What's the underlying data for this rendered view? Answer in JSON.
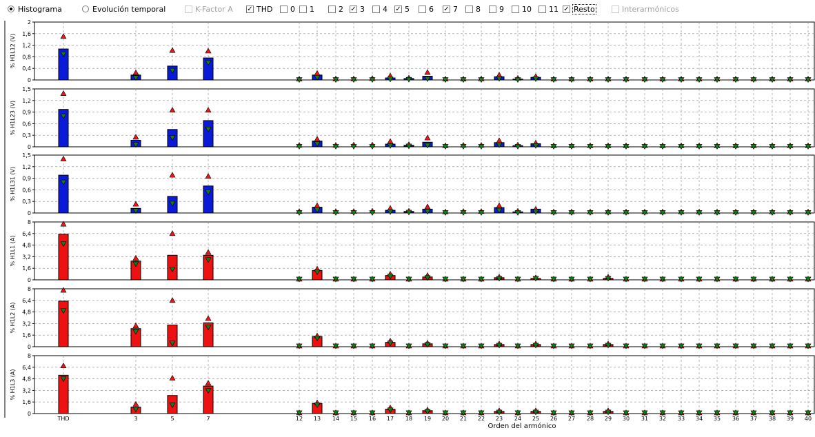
{
  "toolbar": {
    "histogram_label": "Histograma",
    "temporal_label": "Evolución temporal",
    "kfactor_label": "K-Factor A",
    "thd_label": "THD",
    "h0_label": "0",
    "h1_label": "1",
    "h2_label": "2",
    "h3_label": "3",
    "h4_label": "4",
    "h5_label": "5",
    "h6_label": "6",
    "h7_label": "7",
    "h8_label": "8",
    "h9_label": "9",
    "h10_label": "10",
    "h11_label": "11",
    "resto_label": "Resto",
    "inter_label": "Interarmónicos",
    "checked": {
      "thd": true,
      "h3": true,
      "h5": true,
      "h7": true,
      "resto": true
    },
    "selected_mode": "Histograma"
  },
  "colors": {
    "voltage_bar": "#0a1ad8",
    "current_bar": "#ee1111",
    "max_marker": "#e81818",
    "min_marker": "#167a16"
  },
  "chart_data": {
    "type": "bar",
    "categories": [
      "THD",
      "3",
      "5",
      "7",
      "12",
      "13",
      "14",
      "15",
      "16",
      "17",
      "18",
      "19",
      "20",
      "21",
      "22",
      "23",
      "24",
      "25",
      "26",
      "27",
      "28",
      "29",
      "30",
      "31",
      "32",
      "33",
      "34",
      "35",
      "36",
      "37",
      "38",
      "39",
      "40"
    ],
    "xlabel": "Orden del armónico",
    "legend": "none",
    "grid": true,
    "panels": [
      {
        "ylabel": "% H1L12 (V)",
        "ylim": [
          0,
          2
        ],
        "yticks": [
          "0",
          "0,4",
          "0,8",
          "1,2",
          "1,6",
          "2"
        ],
        "bar_color": "voltage",
        "values": [
          1.07,
          0.17,
          0.48,
          0.76,
          0,
          0.17,
          0,
          0,
          0,
          0.07,
          0.05,
          0.13,
          0,
          0,
          0,
          0.11,
          0.03,
          0.09,
          0,
          0,
          0,
          0,
          0,
          0,
          0,
          0,
          0,
          0,
          0,
          0,
          0,
          0,
          0
        ],
        "max": [
          1.5,
          0.25,
          1.02,
          1.0,
          0.03,
          0.23,
          0.04,
          0.04,
          0.05,
          0.14,
          0.07,
          0.26,
          0.03,
          0.03,
          0.04,
          0.17,
          0.06,
          0.12,
          0.03,
          0.03,
          0.03,
          0.03,
          0.03,
          0.03,
          0.03,
          0.03,
          0.03,
          0.03,
          0.03,
          0.03,
          0.03,
          0.03,
          0.03
        ],
        "min": [
          0.9,
          0.08,
          0.33,
          0.6,
          0.01,
          0.09,
          0.01,
          0.01,
          0.01,
          0.03,
          0.02,
          0.04,
          0.01,
          0.01,
          0.01,
          0.05,
          0.01,
          0.04,
          0.01,
          0.01,
          0.01,
          0.01,
          0.01,
          0.01,
          0.01,
          0.01,
          0.01,
          0.01,
          0.01,
          0.01,
          0.01,
          0.01,
          0.01
        ]
      },
      {
        "ylabel": "% H1L23 (V)",
        "ylim": [
          0,
          1.5
        ],
        "yticks": [
          "0",
          "0,3",
          "0,6",
          "0,9",
          "1,2",
          "1,5"
        ],
        "bar_color": "voltage",
        "values": [
          0.97,
          0.17,
          0.45,
          0.68,
          0,
          0.15,
          0,
          0,
          0,
          0.07,
          0.04,
          0.12,
          0,
          0,
          0,
          0.11,
          0.03,
          0.08,
          0,
          0,
          0,
          0,
          0,
          0,
          0,
          0,
          0,
          0,
          0,
          0,
          0,
          0,
          0
        ],
        "max": [
          1.38,
          0.25,
          0.95,
          0.95,
          0.04,
          0.2,
          0.04,
          0.05,
          0.05,
          0.14,
          0.06,
          0.23,
          0.03,
          0.04,
          0.04,
          0.16,
          0.05,
          0.1,
          0.03,
          0.03,
          0.03,
          0.03,
          0.03,
          0.03,
          0.03,
          0.03,
          0.03,
          0.03,
          0.03,
          0.03,
          0.03,
          0.03,
          0.03
        ],
        "min": [
          0.8,
          0.06,
          0.24,
          0.46,
          0.01,
          0.08,
          0.01,
          0.01,
          0.01,
          0.03,
          0.02,
          0.04,
          0.01,
          0.01,
          0.01,
          0.05,
          0.01,
          0.03,
          0.01,
          0.01,
          0.01,
          0.01,
          0.01,
          0.01,
          0.01,
          0.01,
          0.01,
          0.01,
          0.01,
          0.01,
          0.01,
          0.01,
          0.01
        ]
      },
      {
        "ylabel": "% H1L31 (V)",
        "ylim": [
          0,
          1.5
        ],
        "yticks": [
          "0",
          "0,3",
          "0,6",
          "0,9",
          "1,2",
          "1,5"
        ],
        "bar_color": "voltage",
        "values": [
          0.98,
          0.12,
          0.43,
          0.7,
          0,
          0.15,
          0,
          0,
          0,
          0.07,
          0.04,
          0.1,
          0,
          0,
          0,
          0.14,
          0.03,
          0.1,
          0,
          0,
          0,
          0,
          0,
          0,
          0,
          0,
          0,
          0,
          0,
          0,
          0,
          0,
          0
        ],
        "max": [
          1.4,
          0.23,
          0.98,
          0.95,
          0.04,
          0.19,
          0.04,
          0.04,
          0.05,
          0.12,
          0.05,
          0.16,
          0.03,
          0.04,
          0.04,
          0.19,
          0.05,
          0.1,
          0.03,
          0.03,
          0.03,
          0.03,
          0.03,
          0.03,
          0.03,
          0.03,
          0.03,
          0.03,
          0.03,
          0.03,
          0.03,
          0.03,
          0.03
        ],
        "min": [
          0.8,
          0.06,
          0.25,
          0.54,
          0.01,
          0.08,
          0.01,
          0.01,
          0.01,
          0.03,
          0.02,
          0.04,
          0.01,
          0.01,
          0.01,
          0.07,
          0.01,
          0.03,
          0.01,
          0.01,
          0.01,
          0.01,
          0.01,
          0.01,
          0.01,
          0.01,
          0.01,
          0.01,
          0.01,
          0.01,
          0.01,
          0.01,
          0.01
        ]
      },
      {
        "ylabel": "% H1L1 (A)",
        "ylim": [
          0,
          8
        ],
        "yticks": [
          "0",
          "1,6",
          "3,2",
          "4,8",
          "6,4",
          "8"
        ],
        "bar_color": "current",
        "values": [
          6.3,
          2.6,
          3.4,
          3.4,
          0,
          1.3,
          0,
          0,
          0,
          0.6,
          0,
          0.4,
          0,
          0,
          0,
          0.3,
          0,
          0.2,
          0,
          0,
          0,
          0.2,
          0,
          0,
          0,
          0,
          0,
          0,
          0,
          0,
          0,
          0,
          0
        ],
        "max": [
          7.7,
          3.0,
          6.4,
          3.8,
          0.1,
          1.5,
          0.1,
          0.1,
          0.1,
          0.8,
          0.1,
          0.6,
          0.1,
          0.1,
          0.1,
          0.4,
          0.1,
          0.3,
          0.1,
          0.1,
          0.1,
          0.4,
          0.1,
          0.1,
          0.1,
          0.1,
          0.1,
          0.1,
          0.1,
          0.1,
          0.1,
          0.1,
          0.1
        ],
        "min": [
          5.0,
          2.2,
          1.5,
          2.8,
          0.1,
          1.1,
          0.1,
          0.1,
          0.1,
          0.5,
          0.1,
          0.3,
          0.1,
          0.1,
          0.1,
          0.2,
          0.1,
          0.2,
          0.1,
          0.1,
          0.1,
          0.2,
          0.1,
          0.1,
          0.1,
          0.1,
          0.1,
          0.1,
          0.1,
          0.1,
          0.1,
          0.1,
          0.1
        ]
      },
      {
        "ylabel": "% H1L2 (A)",
        "ylim": [
          0,
          8
        ],
        "yticks": [
          "0",
          "1,6",
          "3,2",
          "4,8",
          "6,4",
          "8"
        ],
        "bar_color": "current",
        "values": [
          6.3,
          2.5,
          3.0,
          3.3,
          0,
          1.4,
          0,
          0,
          0,
          0.6,
          0,
          0.4,
          0,
          0,
          0,
          0.3,
          0,
          0.3,
          0,
          0,
          0,
          0.3,
          0,
          0,
          0,
          0,
          0,
          0,
          0,
          0,
          0,
          0,
          0
        ],
        "max": [
          7.8,
          2.9,
          6.4,
          3.9,
          0.1,
          1.5,
          0.1,
          0.1,
          0.1,
          0.8,
          0.1,
          0.5,
          0.1,
          0.1,
          0.1,
          0.4,
          0.1,
          0.4,
          0.1,
          0.1,
          0.1,
          0.4,
          0.1,
          0.1,
          0.1,
          0.1,
          0.1,
          0.1,
          0.1,
          0.1,
          0.1,
          0.1,
          0.1
        ],
        "min": [
          5.0,
          2.1,
          0.5,
          2.7,
          0.1,
          1.2,
          0.1,
          0.1,
          0.1,
          0.5,
          0.1,
          0.3,
          0.1,
          0.1,
          0.1,
          0.2,
          0.1,
          0.2,
          0.1,
          0.1,
          0.1,
          0.2,
          0.1,
          0.1,
          0.1,
          0.1,
          0.1,
          0.1,
          0.1,
          0.1,
          0.1,
          0.1,
          0.1
        ]
      },
      {
        "ylabel": "% H1L3 (A)",
        "ylim": [
          0,
          8
        ],
        "yticks": [
          "0",
          "1,6",
          "3,2",
          "4,8",
          "6,4",
          "8"
        ],
        "bar_color": "current",
        "values": [
          5.3,
          0.9,
          2.5,
          3.8,
          0,
          1.4,
          0,
          0,
          0,
          0.6,
          0,
          0.4,
          0,
          0,
          0,
          0.3,
          0,
          0.3,
          0,
          0,
          0,
          0.3,
          0,
          0,
          0,
          0,
          0,
          0,
          0,
          0,
          0,
          0,
          0
        ],
        "max": [
          6.6,
          1.3,
          4.9,
          4.2,
          0.1,
          1.5,
          0.1,
          0.1,
          0.1,
          0.8,
          0.1,
          0.5,
          0.1,
          0.1,
          0.1,
          0.4,
          0.1,
          0.4,
          0.1,
          0.1,
          0.1,
          0.4,
          0.1,
          0.1,
          0.1,
          0.1,
          0.1,
          0.1,
          0.1,
          0.1,
          0.1,
          0.1,
          0.1
        ],
        "min": [
          4.8,
          0.6,
          1.2,
          3.2,
          0.1,
          1.2,
          0.1,
          0.1,
          0.1,
          0.5,
          0.1,
          0.3,
          0.1,
          0.1,
          0.1,
          0.2,
          0.1,
          0.2,
          0.1,
          0.1,
          0.1,
          0.2,
          0.1,
          0.1,
          0.1,
          0.1,
          0.1,
          0.1,
          0.1,
          0.1,
          0.1,
          0.1,
          0.1
        ]
      }
    ]
  }
}
